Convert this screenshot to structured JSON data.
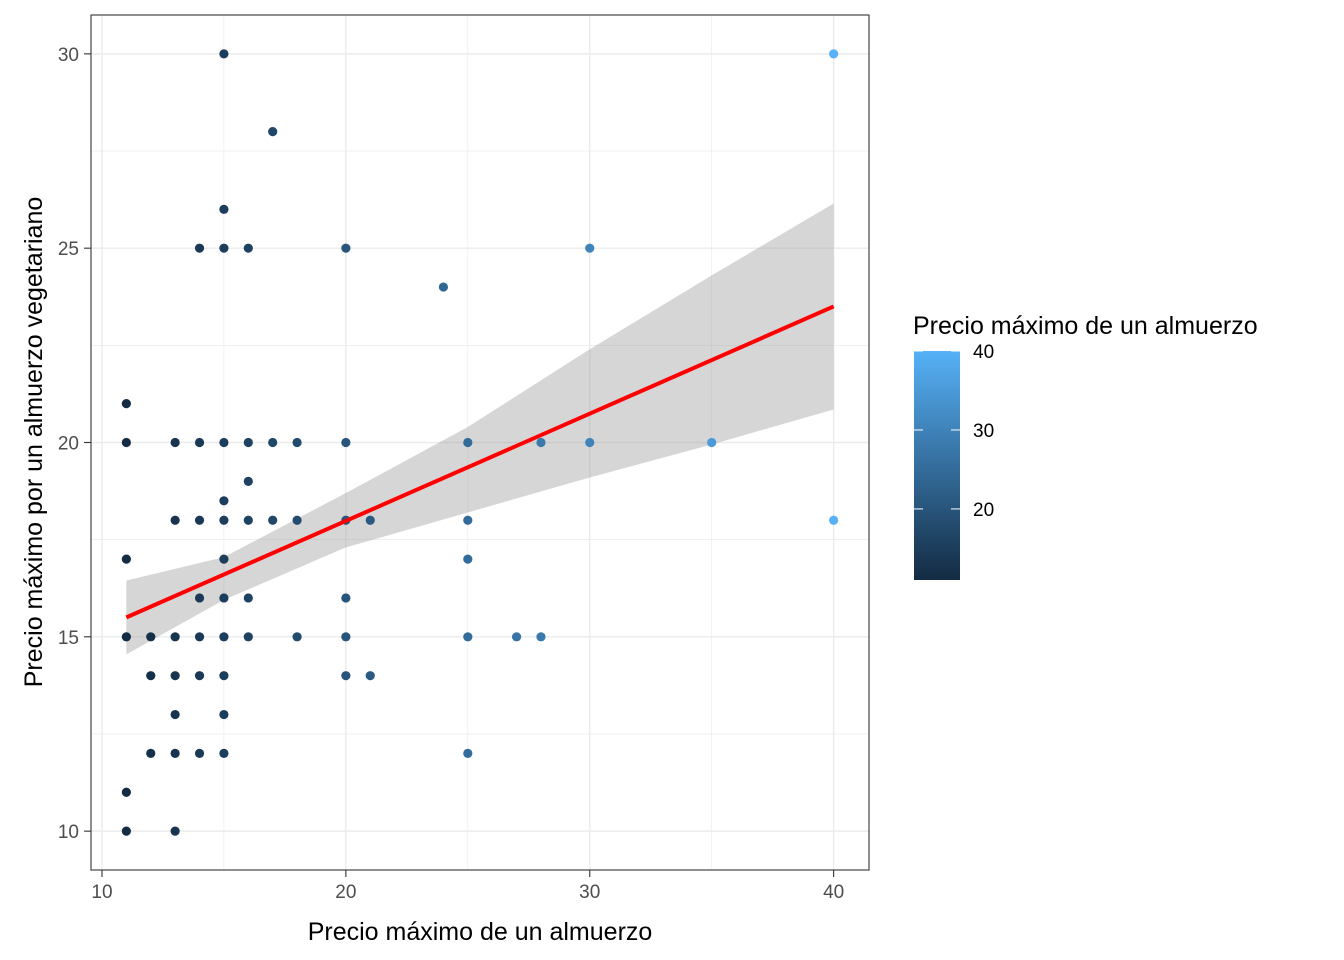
{
  "chart_data": {
    "type": "scatter",
    "xlabel": "Precio máximo de un almuerzo",
    "ylabel": "Precio máximo por un almuerzo vegetariano",
    "xlim": [
      9.55,
      41.45
    ],
    "ylim": [
      9.0,
      31.0
    ],
    "x_ticks": [
      10,
      20,
      30,
      40
    ],
    "y_ticks": [
      10,
      15,
      20,
      25,
      30
    ],
    "grid": true,
    "legend": {
      "title": "Precio máximo de un almuerzo",
      "type": "colorbar",
      "placement": "right",
      "range": [
        11,
        40
      ],
      "ticks": [
        20,
        30,
        40
      ],
      "low_color": "#132b43",
      "high_color": "#56b1f7"
    },
    "colors": {
      "point_low": "#132b43",
      "point_high": "#56b1f7",
      "trend_line": "#ff0000",
      "confidence_band": "#999999",
      "grid": "#ebebeb",
      "panel_border": "#333333"
    },
    "points": [
      {
        "x": 11,
        "y": 21
      },
      {
        "x": 11,
        "y": 20
      },
      {
        "x": 11,
        "y": 17
      },
      {
        "x": 11,
        "y": 15
      },
      {
        "x": 11,
        "y": 11
      },
      {
        "x": 11,
        "y": 10
      },
      {
        "x": 12,
        "y": 15
      },
      {
        "x": 12,
        "y": 14
      },
      {
        "x": 12,
        "y": 12
      },
      {
        "x": 13,
        "y": 20
      },
      {
        "x": 13,
        "y": 18
      },
      {
        "x": 13,
        "y": 15
      },
      {
        "x": 13,
        "y": 14
      },
      {
        "x": 13,
        "y": 13
      },
      {
        "x": 13,
        "y": 12
      },
      {
        "x": 13,
        "y": 10
      },
      {
        "x": 14,
        "y": 25
      },
      {
        "x": 14,
        "y": 20
      },
      {
        "x": 14,
        "y": 18
      },
      {
        "x": 14,
        "y": 16
      },
      {
        "x": 14,
        "y": 15
      },
      {
        "x": 14,
        "y": 14
      },
      {
        "x": 14,
        "y": 12
      },
      {
        "x": 15,
        "y": 30
      },
      {
        "x": 15,
        "y": 26
      },
      {
        "x": 15,
        "y": 25
      },
      {
        "x": 15,
        "y": 20
      },
      {
        "x": 15,
        "y": 18.5
      },
      {
        "x": 15,
        "y": 18
      },
      {
        "x": 15,
        "y": 17
      },
      {
        "x": 15,
        "y": 16
      },
      {
        "x": 15,
        "y": 15
      },
      {
        "x": 15,
        "y": 14
      },
      {
        "x": 15,
        "y": 13
      },
      {
        "x": 15,
        "y": 12
      },
      {
        "x": 16,
        "y": 25
      },
      {
        "x": 16,
        "y": 20
      },
      {
        "x": 16,
        "y": 19
      },
      {
        "x": 16,
        "y": 18
      },
      {
        "x": 16,
        "y": 16
      },
      {
        "x": 16,
        "y": 15
      },
      {
        "x": 17,
        "y": 28
      },
      {
        "x": 17,
        "y": 20
      },
      {
        "x": 17,
        "y": 18
      },
      {
        "x": 18,
        "y": 20
      },
      {
        "x": 18,
        "y": 18
      },
      {
        "x": 18,
        "y": 15
      },
      {
        "x": 20,
        "y": 25
      },
      {
        "x": 20,
        "y": 20
      },
      {
        "x": 20,
        "y": 18
      },
      {
        "x": 20,
        "y": 16
      },
      {
        "x": 20,
        "y": 15
      },
      {
        "x": 20,
        "y": 14
      },
      {
        "x": 21,
        "y": 18
      },
      {
        "x": 21,
        "y": 14
      },
      {
        "x": 24,
        "y": 24
      },
      {
        "x": 25,
        "y": 20
      },
      {
        "x": 25,
        "y": 18
      },
      {
        "x": 25,
        "y": 17
      },
      {
        "x": 25,
        "y": 15
      },
      {
        "x": 25,
        "y": 12
      },
      {
        "x": 27,
        "y": 15
      },
      {
        "x": 28,
        "y": 20
      },
      {
        "x": 28,
        "y": 15
      },
      {
        "x": 30,
        "y": 25
      },
      {
        "x": 30,
        "y": 20
      },
      {
        "x": 35,
        "y": 20
      },
      {
        "x": 40,
        "y": 30
      },
      {
        "x": 40,
        "y": 18
      }
    ],
    "trend": {
      "method": "linear",
      "x": [
        11,
        40
      ],
      "y": [
        15.5,
        23.5
      ],
      "band_x": [
        11,
        15,
        20,
        25,
        30,
        35,
        40
      ],
      "band_lower": [
        14.55,
        15.95,
        17.3,
        18.2,
        19.1,
        19.95,
        20.85
      ],
      "band_upper": [
        16.45,
        17.05,
        18.7,
        20.4,
        22.4,
        24.3,
        26.15
      ]
    }
  }
}
